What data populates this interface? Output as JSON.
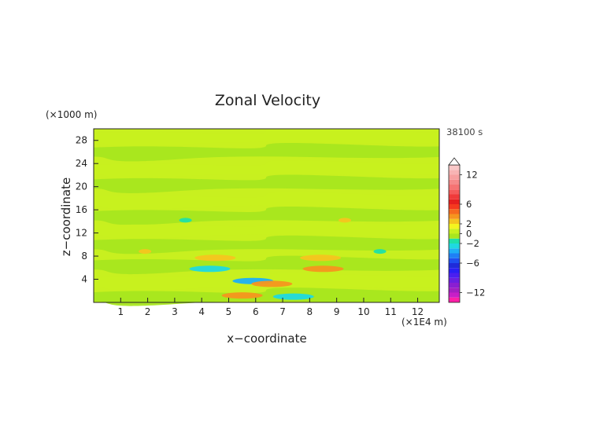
{
  "chart_data": {
    "type": "heatmap",
    "title": "Zonal Velocity",
    "xlabel": "x−coordinate",
    "ylabel": "z−coordinate",
    "x_unit_label": "(×1E4 m)",
    "y_unit_label": "(×1000 m)",
    "time_label": "38100 s",
    "xlim": [
      0,
      12.8
    ],
    "ylim": [
      0,
      30
    ],
    "x_ticks": [
      1,
      2,
      3,
      4,
      5,
      6,
      7,
      8,
      9,
      10,
      11,
      12
    ],
    "x_tick_labels": [
      "1",
      "2",
      "3",
      "4",
      "5",
      "6",
      "7",
      "8",
      "9",
      "10",
      "11",
      "12"
    ],
    "y_ticks": [
      4,
      8,
      12,
      16,
      20,
      24,
      28
    ],
    "y_tick_labels": [
      "4",
      "8",
      "12",
      "16",
      "20",
      "24",
      "28"
    ],
    "colorbar": {
      "range": [
        -14,
        14
      ],
      "levels": [
        -14,
        -13,
        -12,
        -11,
        -10,
        -9,
        -8,
        -7,
        -6,
        -5,
        -4,
        -3,
        -2,
        -1,
        0,
        1,
        2,
        3,
        4,
        5,
        6,
        7,
        8,
        9,
        10,
        11,
        12,
        13,
        14
      ],
      "colors": [
        "#ff1fa8",
        "#c71fc7",
        "#a31fc2",
        "#8a1fd1",
        "#6b1fe0",
        "#4a1ff0",
        "#2a1ff5",
        "#1f2bd9",
        "#1f4ff0",
        "#1f7ff5",
        "#1faff5",
        "#1fd9e0",
        "#1fe0a8",
        "#a8e61f",
        "#c8f01f",
        "#f5f51f",
        "#f5c51f",
        "#f5951f",
        "#f56a1f",
        "#f53a1f",
        "#e61f1f",
        "#f03a3a",
        "#f55a5a",
        "#f57373",
        "#f58a8a",
        "#f7a0a0",
        "#f8b4b4",
        "#f9c8c8"
      ],
      "tick_values": [
        12,
        6,
        2,
        0,
        -2,
        -6,
        -12
      ],
      "tick_labels": [
        "12",
        "6",
        "2",
        "0",
        "−2",
        "−6",
        "−12"
      ]
    },
    "field": {
      "background_value": 0.3,
      "bands": [
        {
          "z": 28.5,
          "value": 0.5
        },
        {
          "z": 26,
          "value": -0.5
        },
        {
          "z": 23,
          "value": 0.4
        },
        {
          "z": 20.5,
          "value": -0.4
        },
        {
          "z": 17.5,
          "value": 0.5
        },
        {
          "z": 15,
          "value": -0.5
        },
        {
          "z": 12.5,
          "value": 0.4
        },
        {
          "z": 10,
          "value": -0.3
        },
        {
          "z": 6.5,
          "value": -0.4
        },
        {
          "z": 3.5,
          "value": 0.5
        },
        {
          "z": 1,
          "value": -0.4
        }
      ],
      "features": [
        {
          "x": 4.5,
          "z": 7.7,
          "value": 2.5
        },
        {
          "x": 8.4,
          "z": 7.7,
          "value": 2.5
        },
        {
          "x": 4.3,
          "z": 5.8,
          "value": -2.5
        },
        {
          "x": 8.5,
          "z": 5.8,
          "value": 3.0
        },
        {
          "x": 5.5,
          "z": 1.2,
          "value": 3.0
        },
        {
          "x": 7.4,
          "z": 1.0,
          "value": -2.5
        },
        {
          "x": 5.9,
          "z": 3.7,
          "value": -3.5
        },
        {
          "x": 6.6,
          "z": 3.2,
          "value": 3.5
        },
        {
          "x": 1.9,
          "z": 8.8,
          "value": 2.0
        },
        {
          "x": 10.6,
          "z": 8.8,
          "value": -2.0
        },
        {
          "x": 3.4,
          "z": 14.2,
          "value": -2.0
        },
        {
          "x": 9.3,
          "z": 14.2,
          "value": 2.0
        }
      ]
    }
  }
}
